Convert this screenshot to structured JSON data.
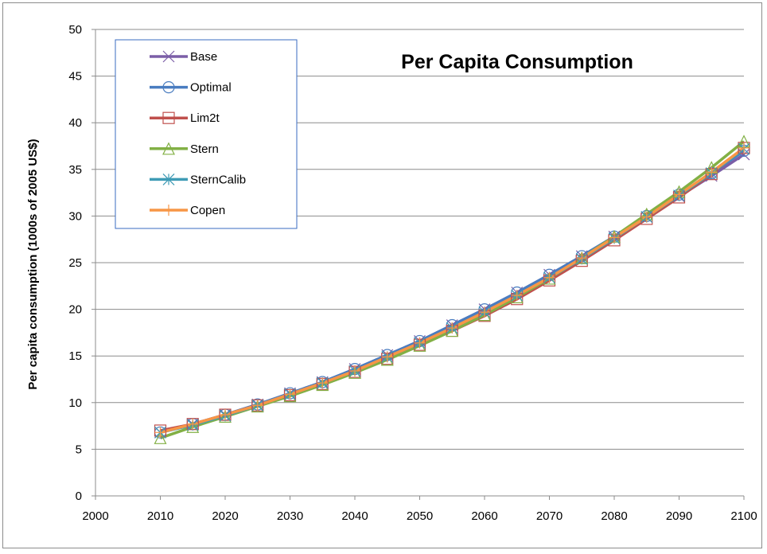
{
  "chart_data": {
    "type": "line",
    "title": "Per Capita Consumption",
    "xlabel": "",
    "ylabel": "Per capita consumption (1000s of 2005 US$)",
    "xlim": [
      2000,
      2100
    ],
    "ylim": [
      0,
      50
    ],
    "xticks": [
      2000,
      2010,
      2020,
      2030,
      2040,
      2050,
      2060,
      2070,
      2080,
      2090,
      2100
    ],
    "yticks": [
      0,
      5,
      10,
      15,
      20,
      25,
      30,
      35,
      40,
      45,
      50
    ],
    "grid": "horizontal",
    "legend_position": "top-left",
    "x": [
      2010,
      2015,
      2020,
      2025,
      2030,
      2035,
      2040,
      2045,
      2050,
      2055,
      2060,
      2065,
      2070,
      2075,
      2080,
      2085,
      2090,
      2095,
      2100
    ],
    "series": [
      {
        "name": "Base",
        "color": "#7b5ea7",
        "marker": "x-cross",
        "values": [
          6.8,
          7.7,
          8.7,
          9.8,
          11.0,
          12.2,
          13.6,
          15.1,
          16.6,
          18.3,
          20.0,
          21.8,
          23.7,
          25.7,
          27.8,
          29.9,
          32.1,
          34.3,
          36.6
        ]
      },
      {
        "name": "Optimal",
        "color": "#4a7dc0",
        "marker": "circle",
        "values": [
          6.8,
          7.7,
          8.7,
          9.8,
          11.0,
          12.2,
          13.6,
          15.1,
          16.6,
          18.3,
          20.0,
          21.8,
          23.7,
          25.7,
          27.8,
          30.0,
          32.3,
          34.6,
          37.0
        ]
      },
      {
        "name": "Lim2t",
        "color": "#c0504d",
        "marker": "square",
        "values": [
          7.0,
          7.7,
          8.7,
          9.7,
          10.8,
          12.0,
          13.3,
          14.7,
          16.2,
          17.7,
          19.3,
          21.1,
          23.1,
          25.2,
          27.4,
          29.7,
          32.0,
          34.5,
          37.3
        ]
      },
      {
        "name": "Stern",
        "color": "#82b045",
        "marker": "triangle",
        "values": [
          6.2,
          7.4,
          8.5,
          9.6,
          10.7,
          11.9,
          13.2,
          14.6,
          16.1,
          17.7,
          19.4,
          21.3,
          23.3,
          25.5,
          27.8,
          30.2,
          32.6,
          35.2,
          38.0
        ]
      },
      {
        "name": "SternCalib",
        "color": "#3e9bb5",
        "marker": "asterisk",
        "values": [
          6.8,
          7.6,
          8.6,
          9.7,
          10.9,
          12.1,
          13.4,
          14.9,
          16.4,
          18.0,
          19.7,
          21.5,
          23.4,
          25.4,
          27.6,
          29.9,
          32.2,
          34.6,
          37.2
        ]
      },
      {
        "name": "Copen",
        "color": "#f79646",
        "marker": "plus",
        "values": [
          6.8,
          7.7,
          8.7,
          9.7,
          10.9,
          12.1,
          13.4,
          14.9,
          16.4,
          18.0,
          19.7,
          21.5,
          23.4,
          25.5,
          27.7,
          29.9,
          32.3,
          34.7,
          37.3
        ]
      }
    ]
  }
}
